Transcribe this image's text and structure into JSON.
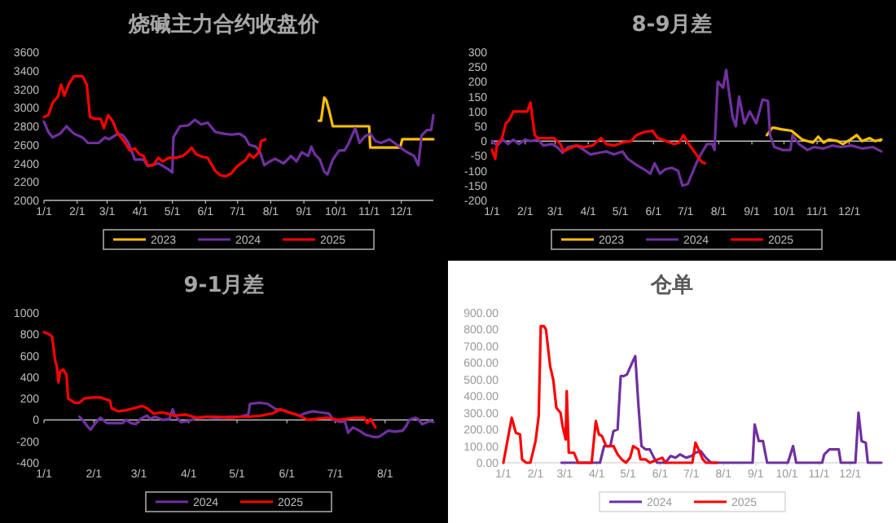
{
  "chart_data": [
    {
      "type": "line",
      "title": "烧碱主力合约收盘价",
      "xlim": [
        "--01-01",
        "--12-31"
      ],
      "xticks": [
        {
          "value": "--01-01",
          "label": "1/1"
        },
        {
          "value": "--02-01",
          "label": "2/1"
        },
        {
          "value": "--03-01",
          "label": "3/1"
        },
        {
          "value": "--04-01",
          "label": "4/1"
        },
        {
          "value": "--05-01",
          "label": "5/1"
        },
        {
          "value": "--06-01",
          "label": "6/1"
        },
        {
          "value": "--07-01",
          "label": "7/1"
        },
        {
          "value": "--08-01",
          "label": "8/1"
        },
        {
          "value": "--09-01",
          "label": "9/1"
        },
        {
          "value": "--10-01",
          "label": "10/1"
        },
        {
          "value": "--11-01",
          "label": "11/1"
        },
        {
          "value": "--12-01",
          "label": "12/1"
        }
      ],
      "ylim": [
        2000,
        3600
      ],
      "yticks": [
        2000,
        2200,
        2400,
        2600,
        2800,
        3000,
        3200,
        3400,
        3600
      ],
      "legend": "bottom",
      "series": [
        {
          "name": "2023",
          "color": "#ffc000",
          "x": [
            "--09-15",
            "--09-17",
            "--09-20",
            "--09-22",
            "--09-25",
            "--09-28",
            "--11-01",
            "--11-02",
            "--11-30",
            "--12-02",
            "--12-31"
          ],
          "values": [
            2860,
            2860,
            3110,
            3080,
            2950,
            2800,
            2800,
            2570,
            2570,
            2660,
            2660
          ]
        },
        {
          "name": "2024",
          "color": "#7030a0",
          "x": [
            "--01-01",
            "--01-05",
            "--01-09",
            "--01-16",
            "--01-22",
            "--01-29",
            "--02-06",
            "--02-11",
            "--02-21",
            "--02-27",
            "--03-03",
            "--03-11",
            "--03-16",
            "--03-21",
            "--03-27",
            "--04-04",
            "--04-08",
            "--04-18",
            "--04-28",
            "--05-01",
            "--05-02",
            "--05-08",
            "--05-16",
            "--05-22",
            "--05-28",
            "--06-03",
            "--06-10",
            "--06-18",
            "--06-25",
            "--07-03",
            "--07-08",
            "--07-12",
            "--07-18",
            "--07-22",
            "--07-26",
            "--07-31",
            "--08-05",
            "--08-13",
            "--08-20",
            "--08-25",
            "--08-30",
            "--09-05",
            "--09-08",
            "--09-11",
            "--09-16",
            "--09-20",
            "--09-23",
            "--09-28",
            "--10-04",
            "--10-09",
            "--10-13",
            "--10-19",
            "--10-23",
            "--10-28",
            "--11-02",
            "--11-07",
            "--11-12",
            "--11-20",
            "--11-27",
            "--12-05",
            "--12-13",
            "--12-17",
            "--12-20",
            "--12-25",
            "--12-29",
            "--12-31"
          ],
          "values": [
            2850,
            2740,
            2680,
            2720,
            2800,
            2720,
            2680,
            2620,
            2620,
            2680,
            2660,
            2720,
            2700,
            2620,
            2440,
            2440,
            2370,
            2400,
            2330,
            2300,
            2680,
            2800,
            2810,
            2870,
            2820,
            2840,
            2740,
            2720,
            2710,
            2720,
            2680,
            2600,
            2580,
            2520,
            2380,
            2420,
            2450,
            2400,
            2480,
            2420,
            2520,
            2480,
            2580,
            2500,
            2440,
            2310,
            2280,
            2440,
            2540,
            2540,
            2620,
            2780,
            2620,
            2690,
            2720,
            2640,
            2620,
            2660,
            2600,
            2530,
            2480,
            2380,
            2700,
            2760,
            2760,
            2920
          ]
        },
        {
          "name": "2025",
          "color": "#ff0000",
          "x": [
            "--01-01",
            "--01-05",
            "--01-09",
            "--01-14",
            "--01-17",
            "--01-20",
            "--01-24",
            "--01-29",
            "--02-06",
            "--02-10",
            "--02-13",
            "--02-18",
            "--02-23",
            "--02-26",
            "--03-02",
            "--03-06",
            "--03-11",
            "--03-14",
            "--03-18",
            "--03-22",
            "--03-27",
            "--03-31",
            "--04-04",
            "--04-08",
            "--04-13",
            "--04-18",
            "--04-22",
            "--04-28",
            "--05-04",
            "--05-11",
            "--05-16",
            "--05-19",
            "--05-23",
            "--05-29",
            "--06-03",
            "--06-07",
            "--06-10",
            "--06-15",
            "--06-20",
            "--06-25",
            "--06-29",
            "--07-04",
            "--07-08",
            "--07-12",
            "--07-16",
            "--07-21",
            "--07-23",
            "--07-27"
          ],
          "values": [
            2900,
            2920,
            3050,
            3120,
            3250,
            3130,
            3250,
            3340,
            3340,
            3250,
            2900,
            2880,
            2880,
            2780,
            2920,
            2860,
            2720,
            2680,
            2620,
            2540,
            2560,
            2500,
            2480,
            2380,
            2380,
            2460,
            2420,
            2460,
            2460,
            2480,
            2530,
            2570,
            2500,
            2470,
            2460,
            2380,
            2320,
            2270,
            2260,
            2290,
            2350,
            2400,
            2430,
            2500,
            2460,
            2520,
            2640,
            2660
          ]
        }
      ]
    },
    {
      "type": "line",
      "title": "8-9月差",
      "xlim": [
        "--01-01",
        "--12-31"
      ],
      "xticks": [
        {
          "value": "--01-01",
          "label": "1/1"
        },
        {
          "value": "--02-01",
          "label": "2/1"
        },
        {
          "value": "--03-01",
          "label": "3/1"
        },
        {
          "value": "--04-01",
          "label": "4/1"
        },
        {
          "value": "--05-01",
          "label": "5/1"
        },
        {
          "value": "--06-01",
          "label": "6/1"
        },
        {
          "value": "--07-01",
          "label": "7/1"
        },
        {
          "value": "--08-01",
          "label": "8/1"
        },
        {
          "value": "--09-01",
          "label": "9/1"
        },
        {
          "value": "--10-01",
          "label": "10/1"
        },
        {
          "value": "--11-01",
          "label": "11/1"
        },
        {
          "value": "--12-01",
          "label": "12/1"
        }
      ],
      "ylim": [
        -200,
        300
      ],
      "yticks": [
        -200,
        -150,
        -100,
        -50,
        0,
        50,
        100,
        150,
        200,
        250,
        300
      ],
      "legend": "bottom",
      "series": [
        {
          "name": "2023",
          "color": "#ffc000",
          "x": [
            "--09-15",
            "--09-20",
            "--09-22",
            "--09-28",
            "--10-08",
            "--10-13",
            "--10-18",
            "--10-23",
            "--10-28",
            "--11-02",
            "--11-07",
            "--11-12",
            "--11-20",
            "--11-25",
            "--12-02",
            "--12-08",
            "--12-13",
            "--12-20",
            "--12-25",
            "--12-31"
          ],
          "values": [
            20,
            45,
            45,
            40,
            35,
            20,
            5,
            0,
            -5,
            15,
            -5,
            5,
            0,
            -10,
            5,
            20,
            0,
            10,
            0,
            5
          ]
        },
        {
          "name": "2024",
          "color": "#7030a0",
          "x": [
            "--01-01",
            "--01-06",
            "--01-11",
            "--01-16",
            "--01-21",
            "--01-26",
            "--02-01",
            "--02-06",
            "--02-13",
            "--02-18",
            "--02-26",
            "--03-03",
            "--03-08",
            "--03-13",
            "--03-21",
            "--03-28",
            "--04-03",
            "--04-10",
            "--04-18",
            "--04-25",
            "--05-03",
            "--05-08",
            "--05-16",
            "--05-23",
            "--05-29",
            "--06-02",
            "--06-07",
            "--06-12",
            "--06-18",
            "--06-24",
            "--06-28",
            "--07-03",
            "--07-07",
            "--07-11",
            "--07-16",
            "--07-21",
            "--07-26",
            "--07-28",
            "--07-31",
            "--08-05",
            "--08-08",
            "--08-10",
            "--08-14",
            "--08-17",
            "--08-20",
            "--08-25",
            "--08-30",
            "--09-05",
            "--09-08",
            "--09-11",
            "--09-16",
            "--09-18",
            "--09-22",
            "--09-30",
            "--10-07",
            "--10-09",
            "--10-15",
            "--10-23",
            "--10-29",
            "--11-07",
            "--11-15",
            "--11-23",
            "--12-03",
            "--12-13",
            "--12-23",
            "--12-31"
          ],
          "values": [
            0,
            -15,
            5,
            -10,
            5,
            -10,
            5,
            0,
            5,
            -15,
            -10,
            -20,
            -40,
            -20,
            -15,
            -30,
            -45,
            -40,
            -35,
            -45,
            -35,
            -60,
            -80,
            -95,
            -110,
            -75,
            -110,
            -95,
            -90,
            -100,
            -150,
            -145,
            -110,
            -75,
            -40,
            -10,
            -10,
            -30,
            200,
            180,
            240,
            180,
            80,
            50,
            150,
            60,
            100,
            60,
            100,
            140,
            135,
            20,
            -20,
            -30,
            -30,
            20,
            -10,
            -30,
            -20,
            -25,
            -15,
            -20,
            -15,
            -25,
            -20,
            -35
          ]
        },
        {
          "name": "2025",
          "color": "#ff0000",
          "x": [
            "--01-01",
            "--01-04",
            "--01-06",
            "--01-10",
            "--01-14",
            "--01-17",
            "--01-21",
            "--01-29",
            "--02-03",
            "--02-06",
            "--02-10",
            "--02-13",
            "--02-21",
            "--02-28",
            "--03-06",
            "--03-09",
            "--03-14",
            "--03-21",
            "--03-28",
            "--04-05",
            "--04-13",
            "--04-18",
            "--04-25",
            "--05-03",
            "--05-11",
            "--05-16",
            "--05-23",
            "--05-31",
            "--06-05",
            "--06-13",
            "--06-20",
            "--06-25",
            "--06-29",
            "--07-03",
            "--07-08",
            "--07-12",
            "--07-16",
            "--07-19"
          ],
          "values": [
            -30,
            -60,
            -5,
            5,
            60,
            70,
            100,
            100,
            100,
            130,
            20,
            10,
            10,
            10,
            -10,
            -35,
            -25,
            -15,
            -20,
            -15,
            10,
            -10,
            -15,
            -5,
            0,
            20,
            30,
            35,
            10,
            0,
            -10,
            -5,
            20,
            -5,
            -30,
            -50,
            -70,
            -75
          ]
        }
      ]
    },
    {
      "type": "line",
      "title": "9-1月差",
      "xlim": [
        "--01-01",
        "--08-31"
      ],
      "xticks": [
        {
          "value": "--01-01",
          "label": "1/1"
        },
        {
          "value": "--02-01",
          "label": "2/1"
        },
        {
          "value": "--03-01",
          "label": "3/1"
        },
        {
          "value": "--04-01",
          "label": "4/1"
        },
        {
          "value": "--05-01",
          "label": "5/1"
        },
        {
          "value": "--06-01",
          "label": "6/1"
        },
        {
          "value": "--07-01",
          "label": "7/1"
        },
        {
          "value": "--08-01",
          "label": "8/1"
        }
      ],
      "ylim": [
        -400,
        1000
      ],
      "yticks": [
        -400,
        -200,
        0,
        200,
        400,
        600,
        800,
        1000
      ],
      "legend": "bottom",
      "series": [
        {
          "name": "2024",
          "color": "#7030a0",
          "x": [
            "--01-23",
            "--01-25",
            "--01-28",
            "--01-30",
            "--02-02",
            "--02-05",
            "--02-09",
            "--02-14",
            "--02-19",
            "--02-21",
            "--02-24",
            "--02-27",
            "--03-02",
            "--03-06",
            "--03-08",
            "--03-11",
            "--03-16",
            "--03-20",
            "--03-22",
            "--03-23",
            "--03-27",
            "--04-01",
            "--04-06",
            "--04-12",
            "--04-19",
            "--04-26",
            "--05-03",
            "--05-08",
            "--05-09",
            "--05-15",
            "--05-20",
            "--05-25",
            "--05-30",
            "--06-04",
            "--06-09",
            "--06-12",
            "--06-17",
            "--06-22",
            "--06-27",
            "--06-30",
            "--07-04",
            "--07-07",
            "--07-09",
            "--07-12",
            "--07-16",
            "--07-20",
            "--07-25",
            "--07-28",
            "--07-31",
            "--08-03",
            "--08-07",
            "--08-12",
            "--08-14",
            "--08-16",
            "--08-20",
            "--08-22",
            "--08-24",
            "--08-29",
            "--08-31"
          ],
          "values": [
            30,
            0,
            -60,
            -90,
            -30,
            20,
            -30,
            -30,
            -30,
            0,
            -30,
            -40,
            10,
            40,
            10,
            30,
            0,
            10,
            100,
            50,
            -20,
            -10,
            20,
            30,
            20,
            30,
            30,
            50,
            150,
            160,
            150,
            100,
            90,
            60,
            40,
            60,
            80,
            70,
            60,
            0,
            -20,
            -10,
            -120,
            -70,
            -100,
            -140,
            -160,
            -160,
            -130,
            -100,
            -110,
            -100,
            -60,
            0,
            20,
            0,
            -40,
            -10,
            -20
          ]
        },
        {
          "name": "2025",
          "color": "#ff0000",
          "x": [
            "--01-01",
            "--01-04",
            "--01-06",
            "--01-08",
            "--01-09",
            "--01-10",
            "--01-11",
            "--01-13",
            "--01-15",
            "--01-16",
            "--01-20",
            "--01-23",
            "--01-26",
            "--01-31",
            "--02-05",
            "--02-09",
            "--02-11",
            "--02-12",
            "--02-16",
            "--02-21",
            "--02-26",
            "--03-03",
            "--03-06",
            "--03-10",
            "--03-16",
            "--03-23",
            "--03-30",
            "--04-06",
            "--04-12",
            "--04-19",
            "--04-26",
            "--05-03",
            "--05-09",
            "--05-16",
            "--05-23",
            "--05-28",
            "--05-31",
            "--06-07",
            "--06-14",
            "--06-19",
            "--06-26",
            "--07-03",
            "--07-13",
            "--07-19",
            "--07-21",
            "--07-23",
            "--07-26"
          ],
          "values": [
            820,
            800,
            780,
            550,
            500,
            350,
            450,
            470,
            420,
            200,
            160,
            160,
            200,
            210,
            210,
            190,
            180,
            110,
            80,
            90,
            110,
            130,
            110,
            60,
            70,
            40,
            50,
            20,
            30,
            30,
            20,
            30,
            30,
            40,
            60,
            100,
            80,
            50,
            0,
            10,
            20,
            0,
            20,
            20,
            -30,
            10,
            -70
          ]
        }
      ]
    },
    {
      "type": "line",
      "title": "仓单",
      "xlim": [
        "--01-01",
        "--12-31"
      ],
      "xticks": [
        {
          "value": "--01-01",
          "label": "1/1"
        },
        {
          "value": "--02-01",
          "label": "2/1"
        },
        {
          "value": "--03-01",
          "label": "3/1"
        },
        {
          "value": "--04-01",
          "label": "4/1"
        },
        {
          "value": "--05-01",
          "label": "5/1"
        },
        {
          "value": "--06-01",
          "label": "6/1"
        },
        {
          "value": "--07-01",
          "label": "7/1"
        },
        {
          "value": "--08-01",
          "label": "8/1"
        },
        {
          "value": "--09-01",
          "label": "9/1"
        },
        {
          "value": "--10-01",
          "label": "10/1"
        },
        {
          "value": "--11-01",
          "label": "11/1"
        },
        {
          "value": "--12-01",
          "label": "12/1"
        }
      ],
      "ylim": [
        0,
        900
      ],
      "yticks": [
        {
          "value": 0,
          "label": "0.00"
        },
        {
          "value": 100,
          "label": "100.00"
        },
        {
          "value": 200,
          "label": "200.00"
        },
        {
          "value": 300,
          "label": "300.00"
        },
        {
          "value": 400,
          "label": "400.00"
        },
        {
          "value": 500,
          "label": "500.00"
        },
        {
          "value": 600,
          "label": "600.00"
        },
        {
          "value": 700,
          "label": "700.00"
        },
        {
          "value": 800,
          "label": "800.00"
        },
        {
          "value": 900,
          "label": "900.00"
        }
      ],
      "legend": "bottom",
      "series": [
        {
          "name": "2024",
          "color": "#7030a0",
          "x": [
            "--02-26",
            "--04-04",
            "--04-08",
            "--04-14",
            "--04-17",
            "--04-21",
            "--04-24",
            "--04-27",
            "--04-30",
            "--05-05",
            "--05-08",
            "--05-11",
            "--05-14",
            "--05-18",
            "--05-22",
            "--05-26",
            "--05-29",
            "--06-06",
            "--06-11",
            "--06-16",
            "--06-20",
            "--06-26",
            "--07-01",
            "--07-05",
            "--07-10",
            "--07-15",
            "--07-20",
            "--07-26",
            "--08-29",
            "--08-31",
            "--09-04",
            "--09-08",
            "--09-12",
            "--10-02",
            "--10-07",
            "--10-10",
            "--11-04",
            "--11-06",
            "--11-11",
            "--11-20",
            "--11-22",
            "--12-06",
            "--12-09",
            "--12-12",
            "--12-16",
            "--12-18",
            "--12-31"
          ],
          "values": [
            0,
            0,
            100,
            100,
            190,
            200,
            520,
            520,
            530,
            600,
            640,
            350,
            100,
            80,
            80,
            30,
            0,
            0,
            40,
            30,
            50,
            30,
            40,
            60,
            70,
            30,
            0,
            0,
            0,
            230,
            130,
            130,
            0,
            0,
            100,
            0,
            0,
            50,
            80,
            80,
            0,
            0,
            300,
            130,
            120,
            0,
            0
          ]
        },
        {
          "name": "2025",
          "color": "#ff0000",
          "x": [
            "--01-01",
            "--01-04",
            "--01-09",
            "--01-13",
            "--01-17",
            "--01-19",
            "--01-23",
            "--01-27",
            "--02-01",
            "--02-04",
            "--02-06",
            "--02-09",
            "--02-11",
            "--02-15",
            "--02-18",
            "--02-21",
            "--02-25",
            "--02-27",
            "--03-02",
            "--03-03",
            "--03-05",
            "--03-10",
            "--03-14",
            "--03-27",
            "--03-31",
            "--04-03",
            "--04-06",
            "--04-10",
            "--04-17",
            "--04-21",
            "--04-25",
            "--04-29",
            "--05-03",
            "--05-06",
            "--05-11",
            "--05-13",
            "--05-18",
            "--05-22",
            "--06-03",
            "--06-06",
            "--07-02",
            "--07-05",
            "--07-08",
            "--07-12",
            "--07-15",
            "--07-26"
          ],
          "values": [
            0,
            100,
            270,
            180,
            170,
            20,
            0,
            0,
            130,
            280,
            820,
            820,
            800,
            580,
            500,
            330,
            300,
            220,
            140,
            430,
            60,
            60,
            0,
            0,
            250,
            170,
            160,
            100,
            100,
            50,
            20,
            0,
            30,
            100,
            80,
            20,
            20,
            0,
            30,
            0,
            0,
            120,
            80,
            20,
            0,
            0
          ]
        }
      ]
    }
  ]
}
